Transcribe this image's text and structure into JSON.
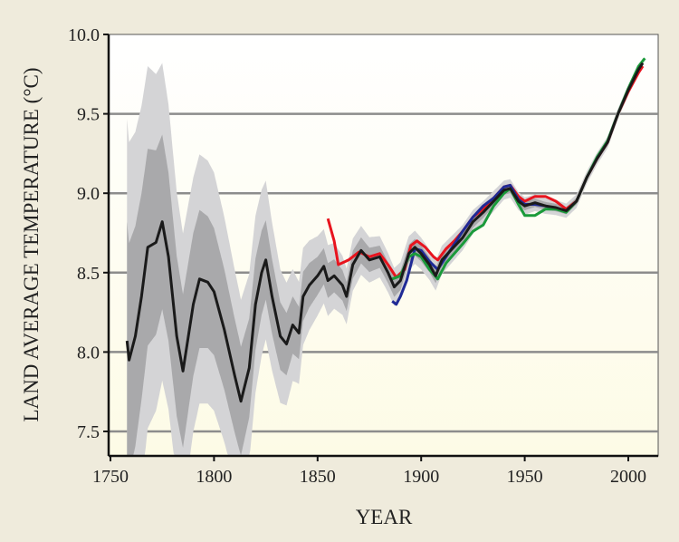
{
  "chart_data": {
    "type": "line",
    "title": "",
    "xlabel": "YEAR",
    "ylabel": "LAND AVERAGE TEMPERATURE (°C)",
    "xlim": [
      1750,
      2014
    ],
    "ylim": [
      7.35,
      10.0
    ],
    "grid": true,
    "x_ticks": [
      1750,
      1800,
      1850,
      1900,
      1950,
      2000
    ],
    "x_tick_labels": [
      "1750",
      "1800",
      "1850",
      "1900",
      "1950",
      "2000"
    ],
    "y_ticks": [
      7.5,
      8.0,
      8.5,
      9.0,
      9.5,
      10.0
    ],
    "y_tick_labels": [
      "7.5",
      "8.0",
      "8.5",
      "9.0",
      "9.5",
      "10.0"
    ],
    "colors": {
      "black": "#1a1a1a",
      "red": "#e8141e",
      "blue": "#1f2a96",
      "green": "#1a9a3a",
      "band_outer": "#d4d4d6",
      "band_inner": "#a9a9ab",
      "grid": "#8c8c8c"
    },
    "series": [
      {
        "name": "black",
        "color": "#1a1a1a",
        "x": [
          1758,
          1759,
          1762,
          1765,
          1768,
          1772,
          1775,
          1778,
          1782,
          1785,
          1790,
          1793,
          1797,
          1800,
          1805,
          1810,
          1813,
          1817,
          1820,
          1823,
          1825,
          1828,
          1832,
          1835,
          1838,
          1841,
          1843,
          1846,
          1850,
          1853,
          1855,
          1858,
          1862,
          1864,
          1867,
          1871,
          1875,
          1880,
          1884,
          1887,
          1890,
          1894,
          1897,
          1900,
          1904,
          1907,
          1910,
          1915,
          1920,
          1925,
          1930,
          1935,
          1940,
          1943,
          1947,
          1950,
          1955,
          1960,
          1965,
          1970,
          1975,
          1980,
          1985,
          1990,
          1995,
          2000,
          2005,
          2007
        ],
        "y": [
          8.07,
          7.95,
          8.1,
          8.35,
          8.66,
          8.69,
          8.82,
          8.6,
          8.1,
          7.88,
          8.3,
          8.46,
          8.44,
          8.38,
          8.14,
          7.85,
          7.69,
          7.9,
          8.3,
          8.5,
          8.58,
          8.35,
          8.1,
          8.05,
          8.17,
          8.12,
          8.35,
          8.42,
          8.48,
          8.54,
          8.45,
          8.48,
          8.42,
          8.35,
          8.55,
          8.64,
          8.58,
          8.6,
          8.5,
          8.41,
          8.45,
          8.62,
          8.66,
          8.62,
          8.55,
          8.48,
          8.58,
          8.65,
          8.72,
          8.82,
          8.88,
          8.95,
          9.02,
          9.03,
          8.95,
          8.92,
          8.94,
          8.92,
          8.91,
          8.89,
          8.95,
          9.1,
          9.22,
          9.32,
          9.5,
          9.65,
          9.78,
          9.82
        ]
      },
      {
        "name": "red",
        "color": "#e8141e",
        "x": [
          1855,
          1858,
          1860,
          1865,
          1870,
          1875,
          1880,
          1884,
          1888,
          1892,
          1895,
          1898,
          1902,
          1906,
          1908,
          1912,
          1916,
          1920,
          1925,
          1930,
          1935,
          1940,
          1943,
          1947,
          1950,
          1955,
          1960,
          1965,
          1970,
          1975,
          1980,
          1985,
          1990,
          1995,
          2000,
          2005,
          2007
        ],
        "y": [
          8.84,
          8.7,
          8.55,
          8.58,
          8.63,
          8.6,
          8.62,
          8.55,
          8.47,
          8.52,
          8.67,
          8.7,
          8.66,
          8.6,
          8.58,
          8.65,
          8.7,
          8.76,
          8.85,
          8.9,
          8.97,
          9.04,
          9.05,
          8.98,
          8.95,
          8.98,
          8.98,
          8.95,
          8.9,
          8.95,
          9.1,
          9.22,
          9.32,
          9.5,
          9.64,
          9.76,
          9.8
        ]
      },
      {
        "name": "blue",
        "color": "#1f2a96",
        "x": [
          1886,
          1888,
          1890,
          1893,
          1897,
          1900,
          1904,
          1908,
          1912,
          1916,
          1920,
          1925,
          1930,
          1935,
          1940,
          1943,
          1947,
          1950,
          1955,
          1960,
          1965,
          1970
        ],
        "y": [
          8.32,
          8.3,
          8.35,
          8.45,
          8.65,
          8.64,
          8.57,
          8.52,
          8.6,
          8.68,
          8.76,
          8.85,
          8.92,
          8.97,
          9.04,
          9.05,
          8.96,
          8.93,
          8.93,
          8.92,
          8.9,
          8.89
        ]
      },
      {
        "name": "green",
        "color": "#1a9a3a",
        "x": [
          1886,
          1890,
          1894,
          1897,
          1900,
          1904,
          1908,
          1912,
          1916,
          1920,
          1925,
          1930,
          1935,
          1940,
          1943,
          1947,
          1950,
          1955,
          1960,
          1965,
          1970,
          1975,
          1980,
          1985,
          1990,
          1995,
          2000,
          2005,
          2008
        ],
        "y": [
          8.46,
          8.48,
          8.6,
          8.62,
          8.6,
          8.52,
          8.46,
          8.56,
          8.62,
          8.68,
          8.76,
          8.8,
          8.92,
          9.0,
          9.03,
          8.93,
          8.86,
          8.86,
          8.9,
          8.9,
          8.88,
          8.95,
          9.1,
          9.23,
          9.33,
          9.5,
          9.66,
          9.8,
          9.85
        ]
      }
    ],
    "uncertainty": {
      "x": [
        1758,
        1765,
        1775,
        1790,
        1800,
        1812,
        1825,
        1840,
        1850,
        1865,
        1880,
        1900,
        1920,
        1940,
        1960,
        1980,
        2007
      ],
      "outer_halfwidth": [
        1.4,
        1.2,
        1.0,
        0.8,
        0.75,
        0.65,
        0.5,
        0.33,
        0.25,
        0.17,
        0.13,
        0.1,
        0.08,
        0.06,
        0.05,
        0.04,
        0.03
      ],
      "inner_halfwidth": [
        0.75,
        0.65,
        0.55,
        0.45,
        0.4,
        0.35,
        0.25,
        0.17,
        0.12,
        0.09,
        0.07,
        0.05,
        0.04,
        0.03,
        0.025,
        0.02,
        0.015
      ]
    }
  }
}
